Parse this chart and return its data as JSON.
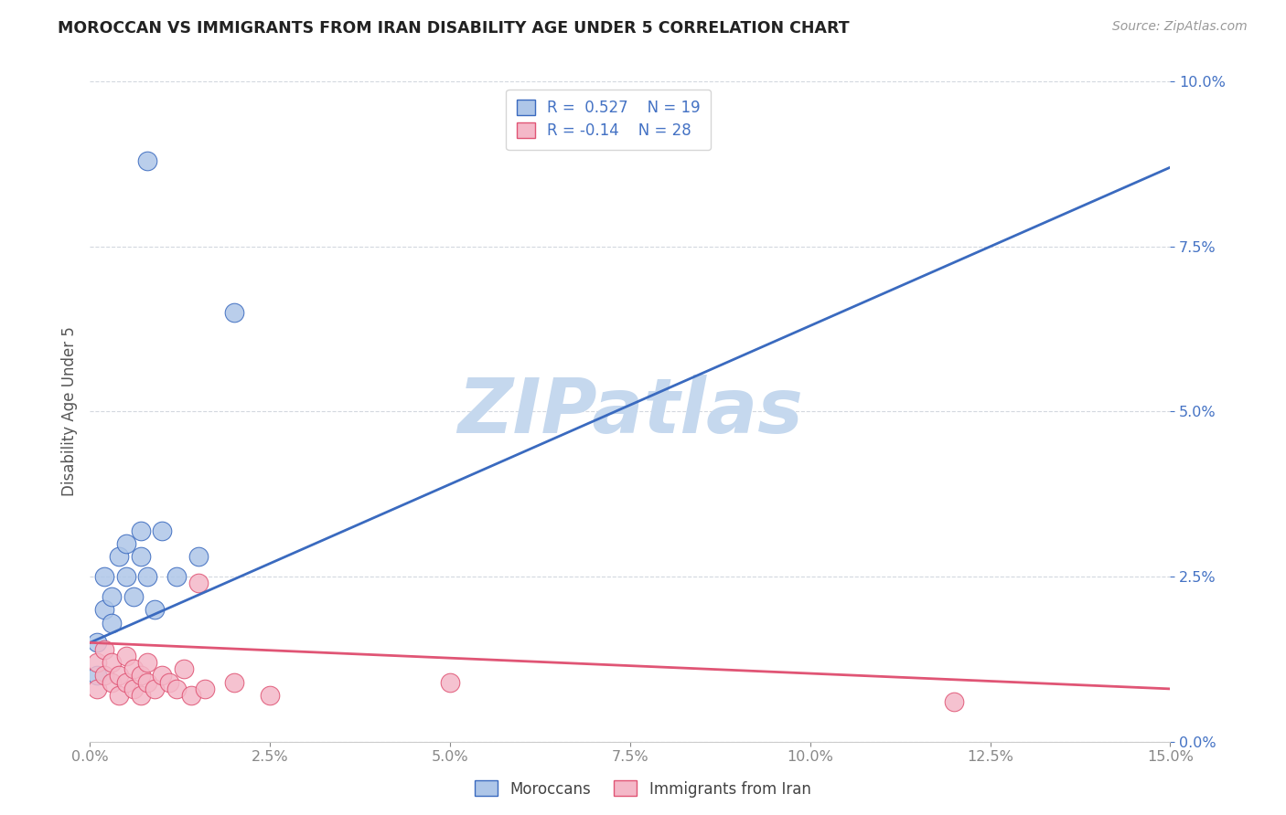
{
  "title": "MOROCCAN VS IMMIGRANTS FROM IRAN DISABILITY AGE UNDER 5 CORRELATION CHART",
  "source": "Source: ZipAtlas.com",
  "ylabel": "Disability Age Under 5",
  "xlim": [
    0.0,
    0.15
  ],
  "ylim": [
    0.0,
    0.1
  ],
  "moroccan_R": 0.527,
  "moroccan_N": 19,
  "iran_R": -0.14,
  "iran_N": 28,
  "moroccan_color": "#aec6e8",
  "iran_color": "#f4b8c8",
  "moroccan_line_color": "#3a6abf",
  "iran_line_color": "#e05575",
  "watermark_text": "ZIPatlas",
  "watermark_color": "#c5d8ee",
  "background_color": "#ffffff",
  "blue_line_x0": 0.0,
  "blue_line_y0": 0.015,
  "blue_line_x1": 0.15,
  "blue_line_y1": 0.087,
  "pink_line_x0": 0.0,
  "pink_line_y0": 0.015,
  "pink_line_x1": 0.15,
  "pink_line_y1": 0.008,
  "moroccan_x": [
    0.001,
    0.001,
    0.002,
    0.002,
    0.003,
    0.003,
    0.004,
    0.005,
    0.005,
    0.006,
    0.007,
    0.007,
    0.008,
    0.009,
    0.01,
    0.012,
    0.015,
    0.02,
    0.008
  ],
  "moroccan_y": [
    0.015,
    0.01,
    0.02,
    0.025,
    0.022,
    0.018,
    0.028,
    0.03,
    0.025,
    0.022,
    0.032,
    0.028,
    0.025,
    0.02,
    0.032,
    0.025,
    0.028,
    0.065,
    0.088
  ],
  "iran_x": [
    0.001,
    0.001,
    0.002,
    0.002,
    0.003,
    0.003,
    0.004,
    0.004,
    0.005,
    0.005,
    0.006,
    0.006,
    0.007,
    0.007,
    0.008,
    0.008,
    0.009,
    0.01,
    0.011,
    0.012,
    0.013,
    0.014,
    0.015,
    0.016,
    0.02,
    0.025,
    0.05,
    0.12
  ],
  "iran_y": [
    0.012,
    0.008,
    0.014,
    0.01,
    0.012,
    0.009,
    0.01,
    0.007,
    0.013,
    0.009,
    0.011,
    0.008,
    0.01,
    0.007,
    0.012,
    0.009,
    0.008,
    0.01,
    0.009,
    0.008,
    0.011,
    0.007,
    0.024,
    0.008,
    0.009,
    0.007,
    0.009,
    0.006
  ]
}
